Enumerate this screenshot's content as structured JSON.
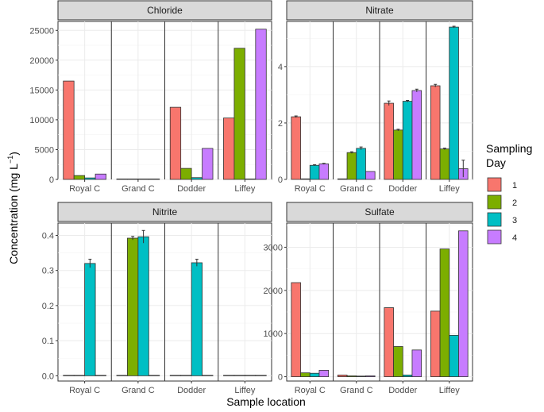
{
  "chart_data": {
    "type": "bar",
    "xlabel": "Sample location",
    "ylabel": "Concentration (mg L",
    "ylabel_superscript": "−1",
    "ylabel_close": ")",
    "categories": [
      "Royal C",
      "Grand C",
      "Dodder",
      "Liffey"
    ],
    "legend": {
      "title_line1": "Sampling",
      "title_line2": "Day",
      "entries": [
        "1",
        "2",
        "3",
        "4"
      ],
      "colors": [
        "#F8766D",
        "#7CAE00",
        "#00BFC4",
        "#C77CFF"
      ],
      "placement": "right"
    },
    "panels": [
      {
        "title": "Chloride",
        "ylim": [
          0,
          26500
        ],
        "yticks": [
          0,
          5000,
          10000,
          15000,
          20000,
          25000
        ],
        "ytick_labels": [
          "0",
          "5000",
          "10000",
          "15000",
          "20000",
          "25000"
        ],
        "series": [
          {
            "name": "1",
            "values": [
              16500,
              30,
              12100,
              10300
            ],
            "errors": [
              0,
              0,
              0,
              0
            ]
          },
          {
            "name": "2",
            "values": [
              650,
              20,
              1850,
              22000
            ],
            "errors": [
              0,
              0,
              0,
              0
            ]
          },
          {
            "name": "3",
            "values": [
              250,
              10,
              300,
              0
            ],
            "errors": [
              0,
              0,
              0,
              0
            ]
          },
          {
            "name": "4",
            "values": [
              900,
              10,
              5200,
              25200
            ],
            "errors": [
              0,
              0,
              0,
              0
            ]
          }
        ]
      },
      {
        "title": "Nitrate",
        "ylim": [
          0,
          5.6
        ],
        "yticks": [
          0,
          2,
          4
        ],
        "ytick_labels": [
          "0",
          "2",
          "4"
        ],
        "series": [
          {
            "name": "1",
            "values": [
              2.22,
              0.02,
              2.7,
              3.32
            ],
            "errors": [
              0.03,
              0,
              0.08,
              0.05
            ]
          },
          {
            "name": "2",
            "values": [
              0.02,
              0.95,
              1.75,
              1.08
            ],
            "errors": [
              0,
              0.03,
              0.03,
              0.03
            ]
          },
          {
            "name": "3",
            "values": [
              0.5,
              1.1,
              2.77,
              5.4
            ],
            "errors": [
              0.02,
              0.05,
              0.03,
              0.03
            ]
          },
          {
            "name": "4",
            "values": [
              0.55,
              0.28,
              3.15,
              0.38
            ],
            "errors": [
              0.02,
              0,
              0.05,
              0.3
            ]
          }
        ]
      },
      {
        "title": "Nitrite",
        "ylim": [
          -0.015,
          0.435
        ],
        "yticks": [
          0.0,
          0.1,
          0.2,
          0.3,
          0.4
        ],
        "ytick_labels": [
          "0.0",
          "0.1",
          "0.2",
          "0.3",
          "0.4"
        ],
        "series": [
          {
            "name": "1",
            "values": [
              0,
              0,
              0,
              0
            ],
            "errors": [
              0,
              0,
              0,
              0
            ]
          },
          {
            "name": "2",
            "values": [
              0,
              0.392,
              0,
              0
            ],
            "errors": [
              0,
              0.005,
              0,
              0
            ]
          },
          {
            "name": "3",
            "values": [
              0.32,
              0.396,
              0.322,
              0
            ],
            "errors": [
              0.012,
              0.018,
              0.01,
              0
            ]
          },
          {
            "name": "4",
            "values": [
              0,
              0,
              0,
              0
            ],
            "errors": [
              0,
              0,
              0,
              0
            ]
          }
        ]
      },
      {
        "title": "Sulfate",
        "ylim": [
          -100,
          3560
        ],
        "yticks": [
          0,
          1000,
          2000,
          3000
        ],
        "ytick_labels": [
          "0",
          "1000",
          "2000",
          "3000"
        ],
        "series": [
          {
            "name": "1",
            "values": [
              2180,
              40,
              1600,
              1520
            ],
            "errors": [
              0,
              0,
              0,
              0
            ]
          },
          {
            "name": "2",
            "values": [
              90,
              20,
              700,
              2960
            ],
            "errors": [
              0,
              0,
              0,
              0
            ]
          },
          {
            "name": "3",
            "values": [
              80,
              15,
              40,
              960
            ],
            "errors": [
              0,
              0,
              0,
              0
            ]
          },
          {
            "name": "4",
            "values": [
              150,
              20,
              620,
              3380
            ],
            "errors": [
              0,
              0,
              0,
              0
            ]
          }
        ]
      }
    ]
  }
}
